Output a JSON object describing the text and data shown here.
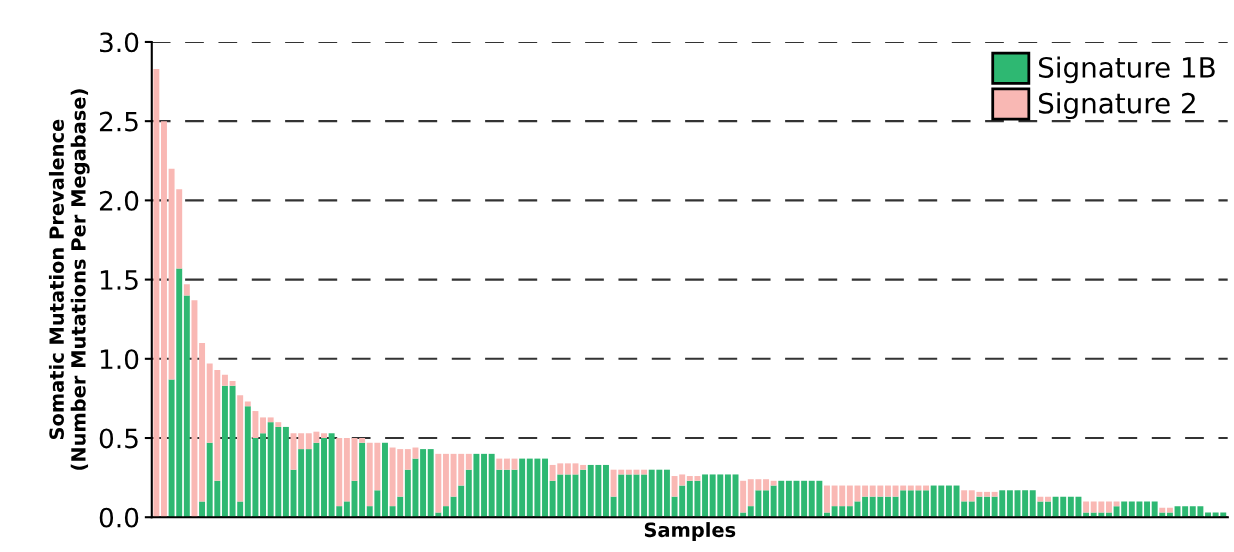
{
  "chart_data": {
    "type": "bar",
    "stacked": true,
    "xlabel": "Samples",
    "ylabel": "Somatic Mutation Prevalence\n(Number Mutations Per Megabase)",
    "categories": [
      null,
      null,
      null,
      null,
      null,
      null,
      null,
      null,
      null,
      null,
      null,
      null,
      null,
      null,
      null,
      null,
      null,
      null,
      null,
      null,
      null,
      null,
      null,
      null,
      null,
      null,
      null,
      null,
      null,
      null,
      null,
      null,
      null,
      null,
      null,
      null,
      null,
      null,
      null,
      null,
      null,
      null,
      null,
      null,
      null,
      null,
      null,
      null,
      null,
      null,
      null,
      null,
      null,
      null,
      null,
      null,
      null,
      null,
      null,
      null,
      null,
      null,
      null,
      null,
      null,
      null,
      null,
      null,
      null,
      null,
      null,
      null,
      null,
      null,
      null,
      null,
      null,
      null,
      null,
      null,
      null,
      null,
      null,
      null,
      null,
      null,
      null,
      null,
      null,
      null,
      null,
      null,
      null,
      null,
      null,
      null,
      null,
      null,
      null,
      null,
      null,
      null,
      null,
      null,
      null,
      null,
      null,
      null,
      null,
      null,
      null,
      null,
      null,
      null,
      null,
      null,
      null,
      null,
      null,
      null,
      null,
      null,
      null,
      null,
      null,
      null,
      null,
      null,
      null,
      null,
      null,
      null,
      null,
      null,
      null,
      null,
      null,
      null,
      null,
      null,
      null
    ],
    "series": [
      {
        "name": "Signature 1B",
        "color": "#2eb872",
        "values": [
          0,
          0,
          0.87,
          1.57,
          1.4,
          0,
          0.1,
          0.47,
          0.23,
          0.83,
          0.83,
          0.1,
          0.7,
          0.5,
          0.53,
          0.6,
          0.57,
          0.57,
          0.3,
          0.43,
          0.43,
          0.47,
          0.5,
          0.53,
          0.07,
          0.1,
          0.23,
          0.47,
          0.07,
          0.17,
          0.47,
          0.07,
          0.13,
          0.3,
          0.37,
          0.43,
          0.43,
          0.03,
          0.07,
          0.13,
          0.2,
          0.3,
          0.4,
          0.4,
          0.4,
          0.3,
          0.3,
          0.3,
          0.37,
          0.37,
          0.37,
          0.37,
          0.23,
          0.27,
          0.27,
          0.27,
          0.3,
          0.33,
          0.33,
          0.33,
          0.13,
          0.27,
          0.27,
          0.27,
          0.27,
          0.3,
          0.3,
          0.3,
          0.13,
          0.2,
          0.23,
          0.23,
          0.27,
          0.27,
          0.27,
          0.27,
          0.27,
          0.03,
          0.07,
          0.17,
          0.17,
          0.2,
          0.23,
          0.23,
          0.23,
          0.23,
          0.23,
          0.23,
          0.03,
          0.07,
          0.07,
          0.07,
          0.1,
          0.13,
          0.13,
          0.13,
          0.13,
          0.13,
          0.17,
          0.17,
          0.17,
          0.17,
          0.2,
          0.2,
          0.2,
          0.2,
          0.1,
          0.1,
          0.13,
          0.13,
          0.13,
          0.17,
          0.17,
          0.17,
          0.17,
          0.17,
          0.1,
          0.1,
          0.13,
          0.13,
          0.13,
          0.13,
          0.03,
          0.03,
          0.03,
          0.03,
          0.07,
          0.1,
          0.1,
          0.1,
          0.1,
          0.1,
          0.03,
          0.03,
          0.07,
          0.07,
          0.07,
          0.07,
          0.03,
          0.03,
          0.03
        ]
      },
      {
        "name": "Signature 2",
        "color": "#f9b8b4",
        "values": [
          2.83,
          2.5,
          1.33,
          0.5,
          0.07,
          1.37,
          1.0,
          0.5,
          0.7,
          0.07,
          0.03,
          0.67,
          0.03,
          0.17,
          0.1,
          0.03,
          0.03,
          0,
          0.23,
          0.1,
          0.1,
          0.07,
          0.03,
          0,
          0.43,
          0.4,
          0.27,
          0.03,
          0.4,
          0.3,
          0,
          0.37,
          0.3,
          0.13,
          0.07,
          0,
          0,
          0.37,
          0.33,
          0.27,
          0.2,
          0.1,
          0,
          0,
          0,
          0.07,
          0.07,
          0.07,
          0,
          0,
          0,
          0,
          0.1,
          0.07,
          0.07,
          0.07,
          0.03,
          0,
          0,
          0,
          0.17,
          0.03,
          0.03,
          0.03,
          0.03,
          0,
          0,
          0,
          0.13,
          0.07,
          0.03,
          0.03,
          0,
          0,
          0,
          0,
          0,
          0.2,
          0.17,
          0.07,
          0.07,
          0.03,
          0,
          0,
          0,
          0,
          0,
          0,
          0.17,
          0.13,
          0.13,
          0.13,
          0.1,
          0.07,
          0.07,
          0.07,
          0.07,
          0.07,
          0.03,
          0.03,
          0.03,
          0.03,
          0,
          0,
          0,
          0,
          0.07,
          0.07,
          0.03,
          0.03,
          0.03,
          0,
          0,
          0,
          0,
          0,
          0.03,
          0.03,
          0,
          0,
          0,
          0,
          0.07,
          0.07,
          0.07,
          0.07,
          0.03,
          0,
          0,
          0,
          0,
          0,
          0.03,
          0.03,
          0,
          0,
          0,
          0,
          0,
          0,
          0
        ]
      }
    ],
    "ylim": [
      0,
      3.0
    ],
    "yticks": [
      {
        "value": 0,
        "label": "0.0"
      },
      {
        "value": 0.5,
        "label": "0.5"
      },
      {
        "value": 1.0,
        "label": "1.0"
      },
      {
        "value": 1.5,
        "label": "1.5"
      },
      {
        "value": 2.0,
        "label": "2.0"
      },
      {
        "value": 2.5,
        "label": "2.5"
      },
      {
        "value": 3.0,
        "label": "3.0"
      }
    ],
    "grid": "y",
    "legend": "top right"
  }
}
